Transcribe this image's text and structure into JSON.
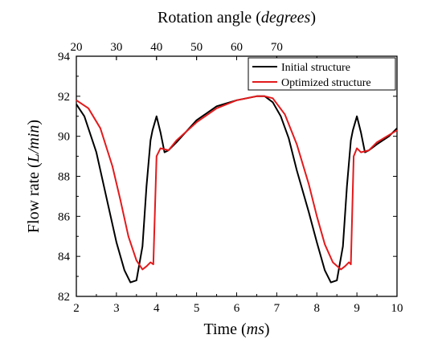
{
  "chart_data": {
    "type": "line",
    "xlabel": "Time",
    "xlabel_unit": "ms",
    "ylabel": "Flow rate",
    "ylabel_unit": "L/min",
    "top_xlabel": "Rotation angle",
    "top_xlabel_unit": "degrees",
    "xlim": [
      2,
      10
    ],
    "ylim": [
      82,
      94
    ],
    "xticks": [
      "2",
      "3",
      "4",
      "5",
      "6",
      "7",
      "8",
      "9",
      "10"
    ],
    "yticks": [
      "82",
      "84",
      "86",
      "88",
      "90",
      "92",
      "94"
    ],
    "top_xticks": [
      "20",
      "30",
      "40",
      "50",
      "60",
      "70"
    ],
    "top_axis_degrees_per_ms": 10,
    "grid": false,
    "legend_position": "top-right",
    "series": [
      {
        "name": "Initial structure",
        "color": "#000000",
        "x": [
          2.0,
          2.2,
          2.5,
          2.8,
          3.0,
          3.2,
          3.35,
          3.5,
          3.65,
          3.75,
          3.85,
          3.9,
          4.0,
          4.1,
          4.2,
          4.3,
          4.5,
          5.0,
          5.5,
          6.0,
          6.5,
          6.7,
          6.9,
          7.1,
          7.3,
          7.5,
          7.8,
          8.0,
          8.2,
          8.35,
          8.5,
          8.65,
          8.75,
          8.85,
          8.9,
          9.0,
          9.1,
          9.2,
          9.3,
          9.5,
          9.8,
          10.0
        ],
        "y": [
          91.6,
          91.0,
          89.2,
          86.5,
          84.7,
          83.3,
          82.7,
          82.8,
          84.5,
          87.5,
          89.8,
          90.3,
          91.0,
          90.2,
          89.2,
          89.3,
          89.7,
          90.8,
          91.5,
          91.8,
          92.0,
          92.0,
          91.7,
          91.0,
          89.9,
          88.3,
          86.2,
          84.7,
          83.3,
          82.7,
          82.8,
          84.5,
          87.5,
          89.8,
          90.3,
          91.0,
          90.2,
          89.2,
          89.3,
          89.6,
          90.0,
          90.4
        ]
      },
      {
        "name": "Optimized structure",
        "color": "#e31a1c",
        "x": [
          2.0,
          2.3,
          2.6,
          2.9,
          3.1,
          3.3,
          3.5,
          3.65,
          3.75,
          3.85,
          3.92,
          4.0,
          4.1,
          4.3,
          4.5,
          5.0,
          5.5,
          6.0,
          6.5,
          6.7,
          6.9,
          7.2,
          7.5,
          7.8,
          8.0,
          8.2,
          8.4,
          8.6,
          8.7,
          8.8,
          8.85,
          8.92,
          9.0,
          9.1,
          9.3,
          9.5,
          10.0
        ],
        "y": [
          91.8,
          91.4,
          90.4,
          88.5,
          86.8,
          85.0,
          83.8,
          83.35,
          83.5,
          83.7,
          83.6,
          89.0,
          89.4,
          89.3,
          89.8,
          90.7,
          91.4,
          91.8,
          92.0,
          92.0,
          91.9,
          91.1,
          89.6,
          87.6,
          86.0,
          84.6,
          83.7,
          83.35,
          83.5,
          83.7,
          83.6,
          89.0,
          89.4,
          89.2,
          89.3,
          89.7,
          90.3
        ]
      }
    ]
  }
}
